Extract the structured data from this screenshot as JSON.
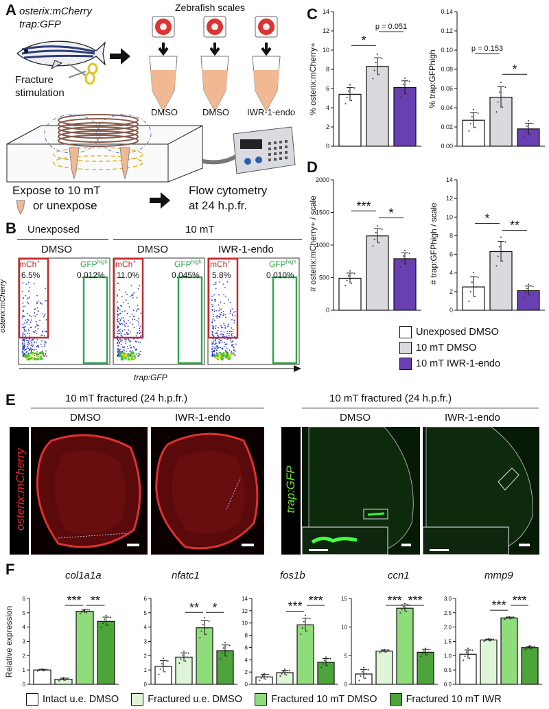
{
  "panel_letters": {
    "A": "A",
    "B": "B",
    "C": "C",
    "D": "D",
    "E": "E",
    "F": "F"
  },
  "panelA": {
    "fish_label_1": "osterix:mCherry",
    "fish_label_2": "trap:GFP",
    "fracture": "Fracture",
    "stimulation": "stimulation",
    "scales_title": "Zebrafish scales",
    "tubes": [
      "DMSO",
      "DMSO",
      "IWR-1-endo"
    ],
    "expose_1": "Expose to 10 mT",
    "expose_2": "or unexpose",
    "flow_1": "Flow cytometry",
    "flow_2": "at 24 h.p.fr."
  },
  "panelB": {
    "group_unexposed": "Unexposed",
    "group_10mt": "10 mT",
    "conditions": [
      "DMSO",
      "DMSO",
      "IWR-1-endo"
    ],
    "mch_gate": "mCh",
    "mch_sup": "+",
    "gfp_gate": "GFP",
    "gfp_sup": "high",
    "mch_pct": [
      "6.5%",
      "11.0%",
      "5.8%"
    ],
    "gfp_pct": [
      "0.012%",
      "0.045%",
      "0.010%"
    ],
    "ylabel": "osterix:mCherry",
    "xlabel": "trap:GFP",
    "colors": {
      "mch": "#c0282a",
      "gfp": "#2ea84a"
    }
  },
  "panelE": {
    "header_left": "10 mT fractured (24 h.p.fr.)",
    "header_right": "10 mT fractured (24 h.p.fr.)",
    "cond_left": [
      "DMSO",
      "IWR-1-endo"
    ],
    "cond_right": [
      "DMSO",
      "IWR-1-endo"
    ],
    "side_left": "osterix:mCherry",
    "side_right": "trap:GFP"
  },
  "legendCD": [
    "Unexposed DMSO",
    "10 mT DMSO",
    "10 mT IWR-1-endo"
  ],
  "legendF": [
    "Intact u.e. DMSO",
    "Fractured u.e. DMSO",
    "Fractured 10 mT DMSO",
    "Fractured 10 mT IWR"
  ],
  "colors": {
    "white": "#ffffff",
    "grey": "#d9d9de",
    "purple": "#6a3fb2",
    "f1": "#ffffff",
    "f2": "#dff5d8",
    "f3": "#8fdc7a",
    "f4": "#4ca43a"
  },
  "chart_data": [
    {
      "id": "C1",
      "type": "bar",
      "ylabel": "% osterix:mCherry+",
      "categories": [
        "Unexposed DMSO",
        "10 mT DMSO",
        "10 mT IWR-1-endo"
      ],
      "values": [
        5.4,
        8.3,
        6.1
      ],
      "errors": [
        0.7,
        0.9,
        0.7
      ],
      "ylim": [
        0,
        14
      ],
      "yticks": [
        0,
        2,
        4,
        6,
        8,
        10,
        12,
        14
      ],
      "annotations": [
        {
          "from": 0,
          "to": 1,
          "text": "*"
        },
        {
          "from": 1,
          "to": 2,
          "text": "p = 0.051"
        }
      ]
    },
    {
      "id": "C2",
      "type": "bar",
      "ylabel": "% trap:GFPhigh",
      "categories": [
        "Unexposed DMSO",
        "10 mT DMSO",
        "10 mT IWR-1-endo"
      ],
      "values": [
        0.027,
        0.051,
        0.018
      ],
      "errors": [
        0.008,
        0.011,
        0.006
      ],
      "ylim": [
        0,
        0.14
      ],
      "yticks": [
        "0.00",
        "0.02",
        "0.04",
        "0.06",
        "0.08",
        "0.10",
        "0.12",
        "0.14"
      ],
      "annotations": [
        {
          "from": 0,
          "to": 1,
          "text": "p = 0.153"
        },
        {
          "from": 1,
          "to": 2,
          "text": "*"
        }
      ]
    },
    {
      "id": "D1",
      "type": "bar",
      "ylabel": "# osterix:mCherry+ / scale",
      "categories": [
        "Unexposed DMSO",
        "10 mT DMSO",
        "10 mT IWR-1-endo"
      ],
      "values": [
        490,
        1140,
        790
      ],
      "errors": [
        80,
        110,
        90
      ],
      "ylim": [
        0,
        2000
      ],
      "yticks": [
        0,
        500,
        1000,
        1500,
        2000
      ],
      "annotations": [
        {
          "from": 0,
          "to": 1,
          "text": "***"
        },
        {
          "from": 1,
          "to": 2,
          "text": "*"
        }
      ]
    },
    {
      "id": "D2",
      "type": "bar",
      "ylabel": "# trap:GFPhigh / scale",
      "categories": [
        "Unexposed DMSO",
        "10 mT DMSO",
        "10 mT IWR-1-endo"
      ],
      "values": [
        2.5,
        6.3,
        2.1
      ],
      "errors": [
        1.1,
        1.1,
        0.5
      ],
      "ylim": [
        0,
        14
      ],
      "yticks": [
        0,
        2,
        4,
        6,
        8,
        10,
        12,
        14
      ],
      "annotations": [
        {
          "from": 0,
          "to": 1,
          "text": "*"
        },
        {
          "from": 1,
          "to": 2,
          "text": "**"
        }
      ]
    },
    {
      "id": "F1",
      "type": "bar",
      "title": "col1a1a",
      "ylabel": "Relative expression",
      "categories": [
        "Intact u.e. DMSO",
        "Fractured u.e. DMSO",
        "Fractured 10 mT DMSO",
        "Fractured 10 mT IWR"
      ],
      "values": [
        1.0,
        0.35,
        5.1,
        4.4
      ],
      "errors": [
        0.05,
        0.08,
        0.1,
        0.3
      ],
      "ylim": [
        0,
        6
      ],
      "yticks": [
        0,
        1,
        2,
        3,
        4,
        5,
        6
      ],
      "annotations": [
        {
          "from": 1,
          "to": 2,
          "text": "***"
        },
        {
          "from": 2,
          "to": 3,
          "text": "**"
        }
      ]
    },
    {
      "id": "F2",
      "type": "bar",
      "title": "nfatc1",
      "categories": [
        "Intact u.e. DMSO",
        "Fractured u.e. DMSO",
        "Fractured 10 mT DMSO",
        "Fractured 10 mT IWR"
      ],
      "values": [
        1.25,
        1.9,
        3.95,
        2.35
      ],
      "errors": [
        0.4,
        0.3,
        0.5,
        0.4
      ],
      "ylim": [
        0,
        6
      ],
      "yticks": [
        0,
        1,
        2,
        3,
        4,
        5,
        6
      ],
      "annotations": [
        {
          "from": 1,
          "to": 2,
          "text": "**"
        },
        {
          "from": 2,
          "to": 3,
          "text": "*"
        }
      ]
    },
    {
      "id": "F3",
      "type": "bar",
      "title": "fos1b",
      "categories": [
        "Intact u.e. DMSO",
        "Fractured u.e. DMSO",
        "Fractured 10 mT DMSO",
        "Fractured 10 mT IWR"
      ],
      "values": [
        1.2,
        1.9,
        9.7,
        3.6
      ],
      "errors": [
        0.4,
        0.4,
        1.1,
        0.6
      ],
      "ylim": [
        0,
        14
      ],
      "yticks": [
        0,
        2,
        4,
        6,
        8,
        10,
        12,
        14
      ],
      "annotations": [
        {
          "from": 1,
          "to": 2,
          "text": "***"
        },
        {
          "from": 2,
          "to": 3,
          "text": "***"
        }
      ]
    },
    {
      "id": "F4",
      "type": "bar",
      "title": "ccn1",
      "categories": [
        "Intact u.e. DMSO",
        "Fractured u.e. DMSO",
        "Fractured 10 mT DMSO",
        "Fractured 10 mT IWR"
      ],
      "values": [
        1.8,
        5.8,
        13.3,
        5.6
      ],
      "errors": [
        0.8,
        0.2,
        0.6,
        0.5
      ],
      "ylim": [
        0,
        15
      ],
      "yticks": [
        0,
        5,
        10,
        15
      ],
      "annotations": [
        {
          "from": 1,
          "to": 2,
          "text": "***"
        },
        {
          "from": 2,
          "to": 3,
          "text": "***"
        }
      ]
    },
    {
      "id": "F5",
      "type": "bar",
      "title": "mmp9",
      "categories": [
        "Intact u.e. DMSO",
        "Fractured u.e. DMSO",
        "Fractured 10 mT DMSO",
        "Fractured 10 mT IWR"
      ],
      "values": [
        1.05,
        1.55,
        2.32,
        1.28
      ],
      "errors": [
        0.15,
        0.03,
        0.03,
        0.05
      ],
      "ylim": [
        0,
        3.0
      ],
      "yticks": [
        "0.0",
        "0.5",
        "1.0",
        "1.5",
        "2.0",
        "2.5",
        "3.0"
      ],
      "annotations": [
        {
          "from": 1,
          "to": 2,
          "text": "***"
        },
        {
          "from": 2,
          "to": 3,
          "text": "***"
        }
      ]
    }
  ]
}
